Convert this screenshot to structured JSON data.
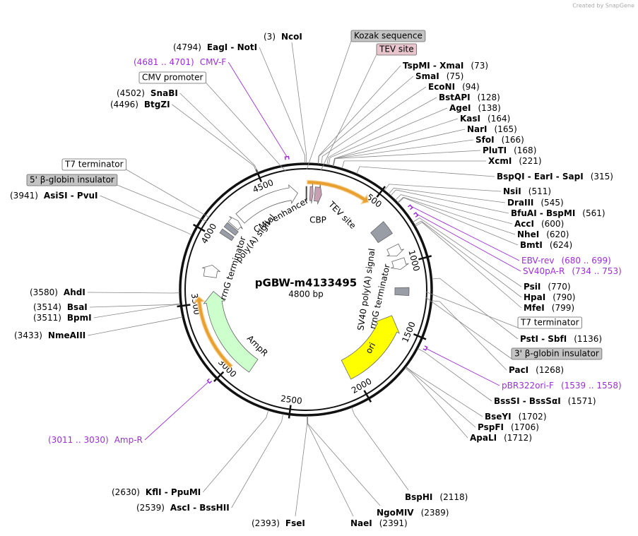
{
  "credit": "Created by SnapGene",
  "plasmid": {
    "name": "pGBW-m4133495",
    "length": {
      "value": 4800,
      "label": "4800 bp"
    }
  },
  "ruler": [
    500,
    1000,
    1500,
    2000,
    2500,
    3000,
    3500,
    4000,
    4500
  ],
  "sites": [
    {
      "enzymes": "NcoI",
      "position": {
        "value": 3,
        "label": "(3)"
      }
    },
    {
      "enzymes": "TspMI  - XmaI",
      "position": {
        "value": 73,
        "label": "(73)"
      }
    },
    {
      "enzymes": "SmaI",
      "position": {
        "value": 75,
        "label": "(75)"
      }
    },
    {
      "enzymes": "EcoNI",
      "position": {
        "value": 94,
        "label": "(94)"
      }
    },
    {
      "enzymes": "BstAPI",
      "position": {
        "value": 128,
        "label": "(128)"
      }
    },
    {
      "enzymes": "AgeI",
      "position": {
        "value": 138,
        "label": "(138)"
      }
    },
    {
      "enzymes": "KasI",
      "position": {
        "value": 164,
        "label": "(164)"
      }
    },
    {
      "enzymes": "NarI",
      "position": {
        "value": 165,
        "label": "(165)"
      }
    },
    {
      "enzymes": "SfoI",
      "position": {
        "value": 166,
        "label": "(166)"
      }
    },
    {
      "enzymes": "PluTI",
      "position": {
        "value": 168,
        "label": "(168)"
      }
    },
    {
      "enzymes": "XcmI",
      "position": {
        "value": 221,
        "label": "(221)"
      }
    },
    {
      "enzymes": "BspQI  - EarI  - SapI",
      "position": {
        "value": 315,
        "label": "(315)"
      }
    },
    {
      "enzymes": "NsiI",
      "position": {
        "value": 511,
        "label": "(511)"
      }
    },
    {
      "enzymes": "DraIII",
      "position": {
        "value": 545,
        "label": "(545)"
      }
    },
    {
      "enzymes": "BfuAI  - BspMI",
      "position": {
        "value": 561,
        "label": "(561)"
      }
    },
    {
      "enzymes": "AccI",
      "position": {
        "value": 600,
        "label": "(600)"
      }
    },
    {
      "enzymes": "NheI",
      "position": {
        "value": 620,
        "label": "(620)"
      }
    },
    {
      "enzymes": "BmtI",
      "position": {
        "value": 624,
        "label": "(624)"
      }
    },
    {
      "enzymes": "PsiI",
      "position": {
        "value": 770,
        "label": "(770)"
      }
    },
    {
      "enzymes": "HpaI",
      "position": {
        "value": 790,
        "label": "(790)"
      }
    },
    {
      "enzymes": "MfeI",
      "position": {
        "value": 799,
        "label": "(799)"
      }
    },
    {
      "enzymes": "PstI  - SbfI",
      "position": {
        "value": 1136,
        "label": "(1136)"
      }
    },
    {
      "enzymes": "PacI",
      "position": {
        "value": 1268,
        "label": "(1268)"
      }
    },
    {
      "enzymes": "BssSI  - BssSαI",
      "position": {
        "value": 1571,
        "label": "(1571)"
      }
    },
    {
      "enzymes": "BseYI",
      "position": {
        "value": 1702,
        "label": "(1702)"
      }
    },
    {
      "enzymes": "PspFI",
      "position": {
        "value": 1706,
        "label": "(1706)"
      }
    },
    {
      "enzymes": "ApaLI",
      "position": {
        "value": 1712,
        "label": "(1712)"
      }
    },
    {
      "enzymes": "BspHI",
      "position": {
        "value": 2118,
        "label": "(2118)"
      }
    },
    {
      "enzymes": "NgoMIV",
      "position": {
        "value": 2389,
        "label": "(2389)"
      }
    },
    {
      "enzymes": "NaeI",
      "position": {
        "value": 2391,
        "label": "(2391)"
      }
    },
    {
      "enzymes": "FseI",
      "position": {
        "value": 2393,
        "label": "(2393)"
      }
    },
    {
      "enzymes": "AscI  - BssHII",
      "position": {
        "value": 2539,
        "label": "(2539)"
      }
    },
    {
      "enzymes": "KflI  - PpuMI",
      "position": {
        "value": 2630,
        "label": "(2630)"
      }
    },
    {
      "enzymes": "NmeAIII",
      "position": {
        "value": 3433,
        "label": "(3433)"
      }
    },
    {
      "enzymes": "BpmI",
      "position": {
        "value": 3511,
        "label": "(3511)"
      }
    },
    {
      "enzymes": "BsaI",
      "position": {
        "value": 3514,
        "label": "(3514)"
      }
    },
    {
      "enzymes": "AhdI",
      "position": {
        "value": 3580,
        "label": "(3580)"
      }
    },
    {
      "enzymes": "AsiSI  - PvuI",
      "position": {
        "value": 3941,
        "label": "(3941)"
      }
    },
    {
      "enzymes": "BtgZI",
      "position": {
        "value": 4496,
        "label": "(4496)"
      }
    },
    {
      "enzymes": "SnaBI",
      "position": {
        "value": 4502,
        "label": "(4502)"
      }
    },
    {
      "enzymes": "EagI  - NotI",
      "position": {
        "value": 4794,
        "label": "(4794)"
      }
    }
  ],
  "primers": [
    {
      "name": "EBV-rev",
      "range": {
        "start": 680,
        "end": 699,
        "label": "(680 .. 699)"
      }
    },
    {
      "name": "SV40pA-R",
      "range": {
        "start": 734,
        "end": 753,
        "label": "(734 .. 753)"
      }
    },
    {
      "name": "pBR322ori-F",
      "range": {
        "start": 1539,
        "end": 1558,
        "label": "(1539 .. 1558)"
      }
    },
    {
      "name": "Amp-R",
      "range": {
        "start": 3011,
        "end": 3030,
        "label": "(3011 .. 3030)"
      }
    },
    {
      "name": "CMV-F",
      "range": {
        "start": 4681,
        "end": 4701,
        "label": "(4681 .. 4701)"
      }
    }
  ],
  "feature_callouts": [
    "Kozak sequence",
    "TEV site",
    "CMV promoter",
    "T7 terminator",
    "5' β-globin insulator",
    "T7 terminator",
    "3' β-globin insulator"
  ],
  "feature_labels": [
    "CMV enhancer",
    "poly(A) signal",
    "CBP",
    "TEV site",
    "rrnG terminator",
    "SV40 poly(A) signal",
    "rrnG terminator",
    "AmpR",
    "ori"
  ]
}
